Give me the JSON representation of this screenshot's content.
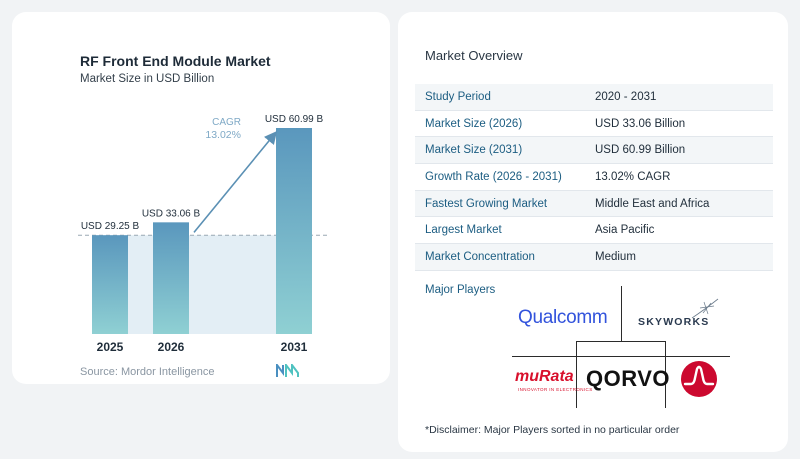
{
  "chart_data": {
    "type": "bar",
    "title": "RF Front End Module Market",
    "subtitle": "Market Size in USD Billion",
    "categories": [
      "2025",
      "2026",
      "2031"
    ],
    "values": [
      29.25,
      33.06,
      60.99
    ],
    "data_labels": [
      "USD 29.25 B",
      "USD 33.06 B",
      "USD 60.99 B"
    ],
    "annotation": {
      "label": "CAGR",
      "value": "13.02%"
    },
    "xlabel": "",
    "ylabel": "",
    "ylim": [
      0,
      60.99
    ],
    "grid": false,
    "bar_color_top": "#5a97bd",
    "bar_color_bottom": "#8fd0d3",
    "source": "Source:  Mordor Intelligence"
  },
  "overview": {
    "title": "Market Overview",
    "rows": [
      {
        "label": "Study Period",
        "value": "2020 - 2031"
      },
      {
        "label": "Market Size (2026)",
        "value": "USD 33.06 Billion"
      },
      {
        "label": "Market Size (2031)",
        "value": "USD 60.99 Billion"
      },
      {
        "label": "Growth Rate (2026 - 2031)",
        "value": "13.02% CAGR"
      },
      {
        "label": "Fastest Growing Market",
        "value": "Middle East and Africa"
      },
      {
        "label": "Largest Market",
        "value": "Asia Pacific"
      },
      {
        "label": "Market Concentration",
        "value": "Medium"
      }
    ]
  },
  "players": {
    "title": "Major Players",
    "logos": {
      "qualcomm": "Qualcomm",
      "skyworks": "SKYWORKS",
      "murata": "muRata",
      "murata_tagline": "INNOVATOR IN ELECTRONICS",
      "qorvo": "QORVO"
    },
    "broadcom_icon": "broadcom-logo-icon"
  },
  "disclaimer": "*Disclaimer: Major Players sorted in no particular order"
}
